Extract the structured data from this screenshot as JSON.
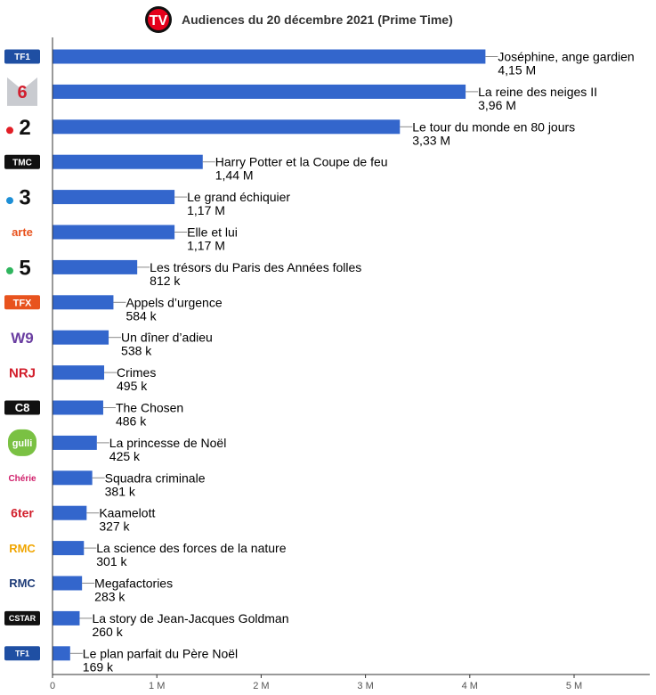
{
  "header": {
    "title": "Audiences du 20 décembre 2021 (Prime Time)",
    "logo_text": "TV"
  },
  "colors": {
    "bar": "#3366cc",
    "axis": "#333333",
    "grid": "#cccccc",
    "label": "#000000"
  },
  "chart_data": {
    "type": "bar",
    "orientation": "horizontal",
    "title": "Audiences du 20 décembre 2021 (Prime Time)",
    "xlim": [
      0,
      5800000
    ],
    "x_ticks": [
      0,
      1000000,
      2000000,
      3000000,
      4000000,
      5000000
    ],
    "x_tick_labels": [
      "0",
      "1 M",
      "2 M",
      "3 M",
      "4 M",
      "5 M"
    ],
    "grid": false,
    "items": [
      {
        "channel": "TF1",
        "logo_text": "TF1",
        "program": "Joséphine, ange gardien",
        "value": 4150000,
        "value_label": "4,15 M"
      },
      {
        "channel": "M6",
        "logo_text": "6",
        "program": "La reine des neiges II",
        "value": 3960000,
        "value_label": "3,96 M"
      },
      {
        "channel": "France 2",
        "logo_text": "2",
        "program": "Le tour du monde en 80 jours",
        "value": 3330000,
        "value_label": "3,33 M"
      },
      {
        "channel": "TMC",
        "logo_text": "TMC",
        "program": "Harry Potter et la Coupe de feu",
        "value": 1440000,
        "value_label": "1,44 M"
      },
      {
        "channel": "France 3",
        "logo_text": "3",
        "program": "Le grand échiquier",
        "value": 1170000,
        "value_label": "1,17 M"
      },
      {
        "channel": "Arte",
        "logo_text": "arte",
        "program": "Elle et lui",
        "value": 1170000,
        "value_label": "1,17 M"
      },
      {
        "channel": "France 5",
        "logo_text": "5",
        "program": "Les trésors du Paris des Années folles",
        "value": 812000,
        "value_label": "812 k"
      },
      {
        "channel": "TFX",
        "logo_text": "TFX",
        "program": "Appels d’urgence",
        "value": 584000,
        "value_label": "584 k"
      },
      {
        "channel": "W9",
        "logo_text": "W9",
        "program": "Un dîner d’adieu",
        "value": 538000,
        "value_label": "538 k"
      },
      {
        "channel": "NRJ 12",
        "logo_text": "NRJ",
        "program": "Crimes",
        "value": 495000,
        "value_label": "495 k"
      },
      {
        "channel": "C8",
        "logo_text": "C8",
        "program": "The Chosen",
        "value": 486000,
        "value_label": "486 k"
      },
      {
        "channel": "Gulli",
        "logo_text": "gulli",
        "program": "La princesse de Noël",
        "value": 425000,
        "value_label": "425 k"
      },
      {
        "channel": "Chérie 25",
        "logo_text": "Chérie",
        "program": "Squadra criminale",
        "value": 381000,
        "value_label": "381 k"
      },
      {
        "channel": "6ter",
        "logo_text": "6ter",
        "program": "Kaamelott",
        "value": 327000,
        "value_label": "327 k"
      },
      {
        "channel": "RMC Story",
        "logo_text": "RMC",
        "program": "La science des forces de la nature",
        "value": 301000,
        "value_label": "301 k"
      },
      {
        "channel": "RMC Découverte",
        "logo_text": "RMC",
        "program": "Megafactories",
        "value": 283000,
        "value_label": "283 k"
      },
      {
        "channel": "CStar",
        "logo_text": "CSTAR",
        "program": "La story de Jean-Jacques Goldman",
        "value": 260000,
        "value_label": "260 k"
      },
      {
        "channel": "TF1 Séries Films",
        "logo_text": "TF1",
        "program": "Le plan parfait du Père Noël",
        "value": 169000,
        "value_label": "169 k"
      }
    ]
  }
}
